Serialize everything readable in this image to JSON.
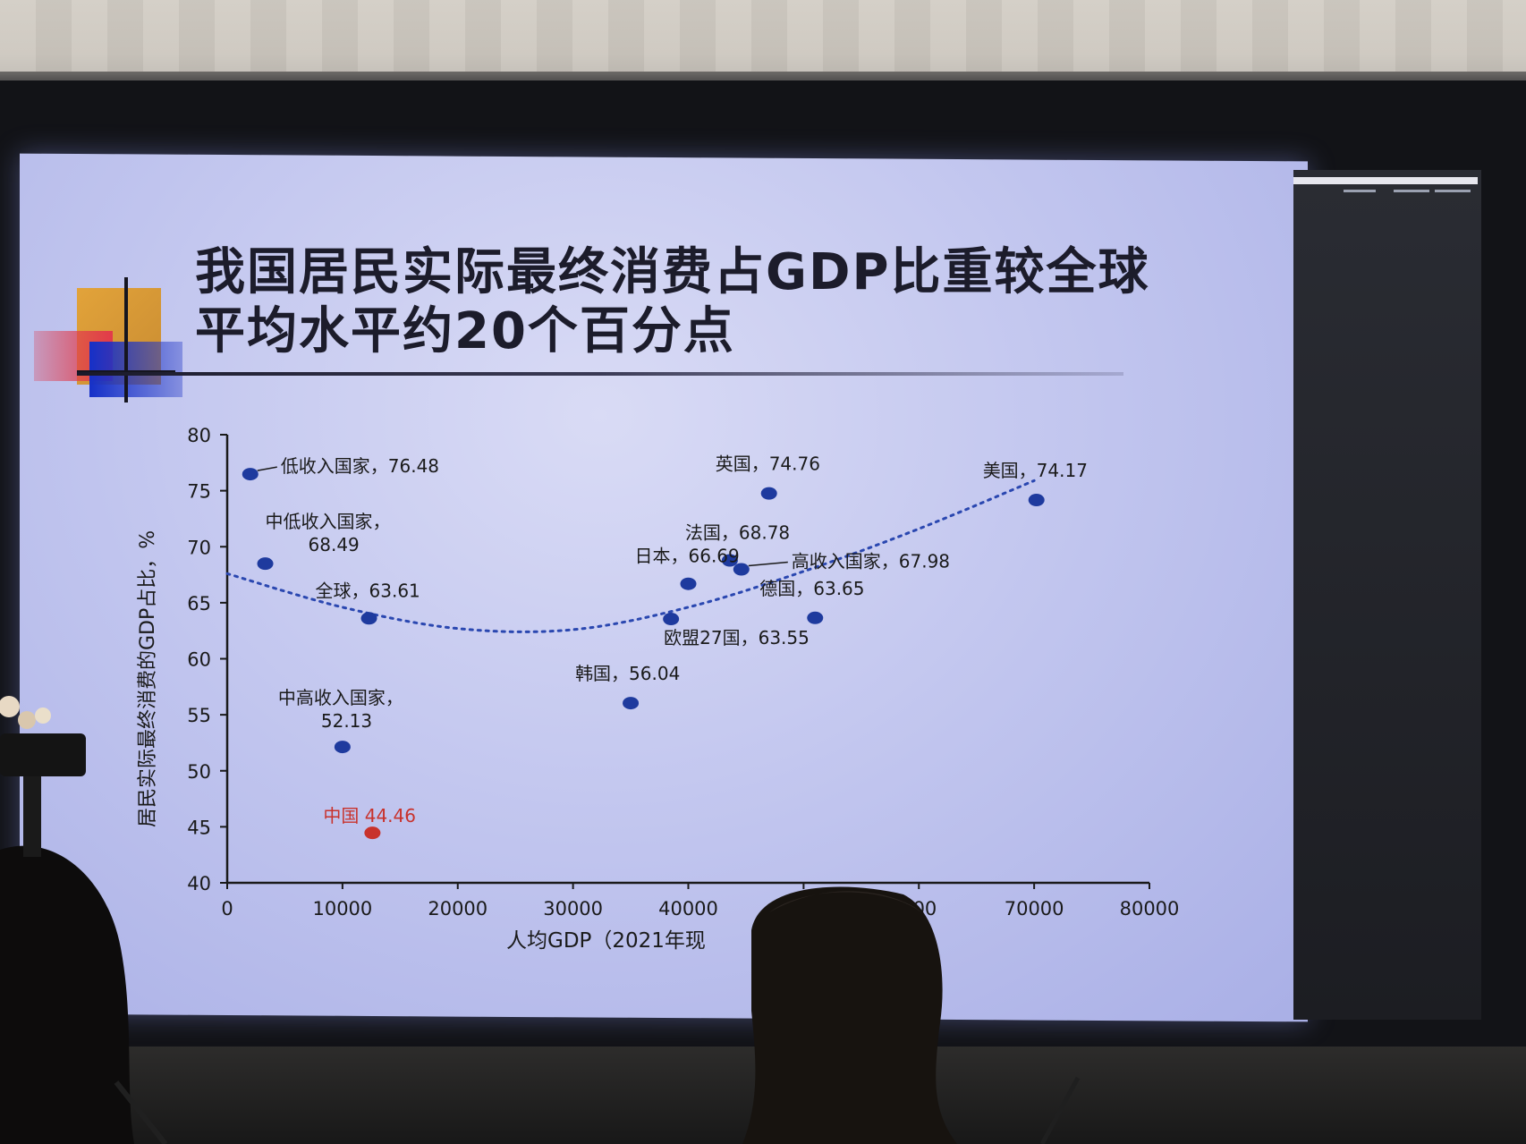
{
  "slide": {
    "title_line1": "我国居民实际最终消费占GDP比重较全球",
    "title_line2": "平均水平约20个百分点"
  },
  "chart_data": {
    "type": "scatter",
    "title": "我国居民实际最终消费占GDP比重较全球平均水平约20个百分点",
    "xlabel": "人均GDP（2021年现",
    "ylabel": "居民实际最终消费的GDP占比，%",
    "xlim": [
      0,
      80000
    ],
    "ylim": [
      40,
      80
    ],
    "x_ticks": [
      "0",
      "10000",
      "20000",
      "30000",
      "40000",
      "50000",
      "60000",
      "70000",
      "80000"
    ],
    "x_ticks_visible": [
      "0",
      "10000",
      "20000",
      "30000",
      "40000",
      "5",
      "000",
      "70000",
      "80000"
    ],
    "y_ticks": [
      "40",
      "45",
      "50",
      "55",
      "60",
      "65",
      "70",
      "75",
      "80"
    ],
    "grid": false,
    "colors": {
      "point": "#1e3a9e",
      "highlight": "#c8322c",
      "trend": "#2a47b0"
    },
    "points": [
      {
        "label": "低收入国家",
        "value": "76.48",
        "x": 2000,
        "y": 76.48
      },
      {
        "label": "中低收入国家",
        "value": "68.49",
        "x": 3300,
        "y": 68.49
      },
      {
        "label": "全球",
        "value": "63.61",
        "x": 12300,
        "y": 63.61
      },
      {
        "label": "中高收入国家",
        "value": "52.13",
        "x": 10000,
        "y": 52.13
      },
      {
        "label": "中国",
        "value": "44.46",
        "x": 12600,
        "y": 44.46,
        "highlight": true
      },
      {
        "label": "韩国",
        "value": "56.04",
        "x": 35000,
        "y": 56.04
      },
      {
        "label": "欧盟27国",
        "value": "63.55",
        "x": 38500,
        "y": 63.55
      },
      {
        "label": "日本",
        "value": "66.69",
        "x": 40000,
        "y": 66.69
      },
      {
        "label": "法国",
        "value": "68.78",
        "x": 43600,
        "y": 68.78
      },
      {
        "label": "高收入国家",
        "value": "67.98",
        "x": 44600,
        "y": 67.98
      },
      {
        "label": "英国",
        "value": "74.76",
        "x": 47000,
        "y": 74.76
      },
      {
        "label": "德国",
        "value": "63.65",
        "x": 51000,
        "y": 63.65
      },
      {
        "label": "美国",
        "value": "74.17",
        "x": 70200,
        "y": 74.17
      }
    ],
    "trendline": {
      "style": "dotted",
      "x": [
        0,
        10000,
        20000,
        30000,
        40000,
        50000,
        60000,
        70000
      ],
      "y": [
        67.6,
        64.6,
        62.7,
        62.6,
        64.6,
        67.8,
        71.6,
        75.9
      ]
    }
  }
}
